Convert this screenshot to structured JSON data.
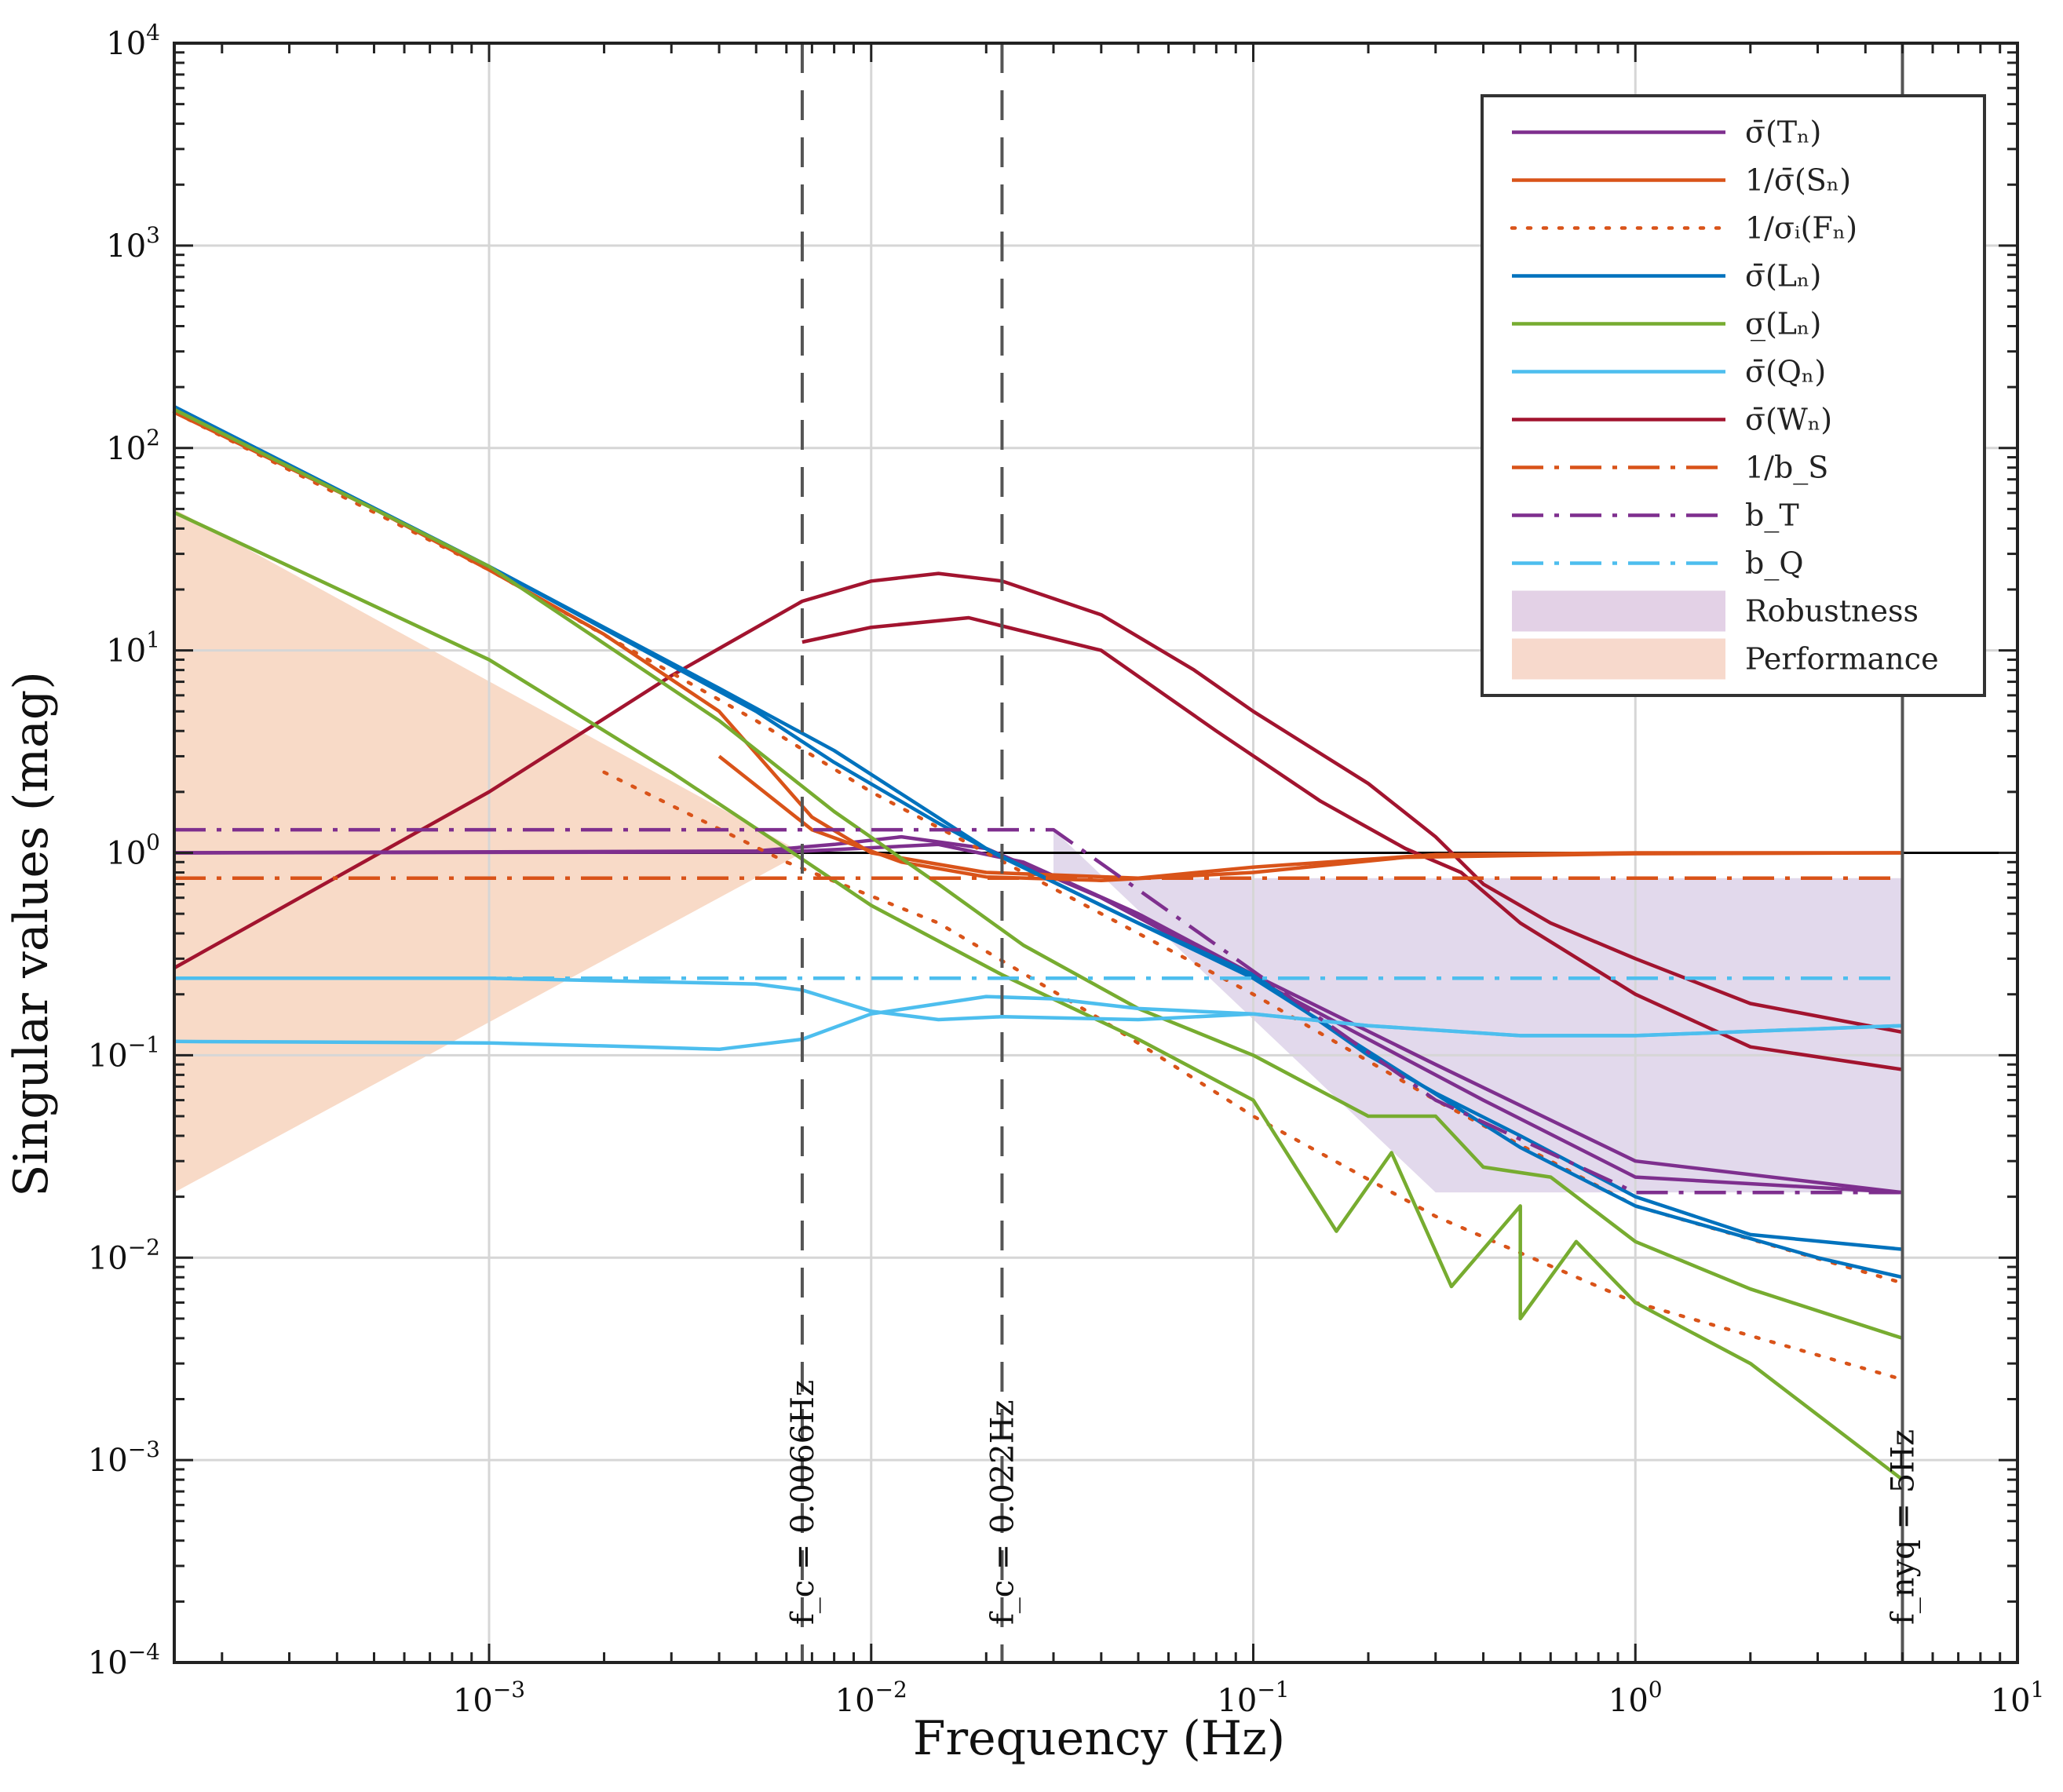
{
  "chart_data": {
    "type": "line",
    "title": "",
    "xlabel": "Frequency (Hz)",
    "ylabel": "Singular values (mag)",
    "xscale": "log",
    "yscale": "log",
    "xlim": [
      0.00015,
      10
    ],
    "ylim": [
      0.0001,
      10000
    ],
    "grid": true,
    "legend_position": "top-right",
    "x_tick_labels": [
      {
        "value": 0.001,
        "base": "10",
        "exp": "−3"
      },
      {
        "value": 0.01,
        "base": "10",
        "exp": "−2"
      },
      {
        "value": 0.1,
        "base": "10",
        "exp": "−1"
      },
      {
        "value": 1,
        "base": "10",
        "exp": "0"
      },
      {
        "value": 10,
        "base": "10",
        "exp": "1"
      }
    ],
    "y_tick_labels": [
      {
        "value": 0.0001,
        "base": "10",
        "exp": "−4"
      },
      {
        "value": 0.001,
        "base": "10",
        "exp": "−3"
      },
      {
        "value": 0.01,
        "base": "10",
        "exp": "−2"
      },
      {
        "value": 0.1,
        "base": "10",
        "exp": "−1"
      },
      {
        "value": 1,
        "base": "10",
        "exp": "0"
      },
      {
        "value": 10,
        "base": "10",
        "exp": "1"
      },
      {
        "value": 100,
        "base": "10",
        "exp": "2"
      },
      {
        "value": 1000,
        "base": "10",
        "exp": "3"
      },
      {
        "value": 10000,
        "base": "10",
        "exp": "4"
      }
    ],
    "vertical_lines": [
      {
        "x": 0.0066,
        "label": "f_c = 0.0066Hz",
        "style": "dashed",
        "color": "#555555"
      },
      {
        "x": 0.022,
        "label": "f_c = 0.022Hz",
        "style": "dashed",
        "color": "#555555"
      },
      {
        "x": 5,
        "label": "f_nyq = 5Hz",
        "style": "solid",
        "color": "#555555"
      }
    ],
    "reference_line": {
      "y": 1,
      "color": "#000000"
    },
    "legend": [
      {
        "label": "σ̄(Tₙ)",
        "color": "#7E2F8E",
        "style": "solid"
      },
      {
        "label": "1/σ̄(Sₙ)",
        "color": "#D95319",
        "style": "solid"
      },
      {
        "label": "1/σᵢ(Fₙ)",
        "color": "#D95319",
        "style": "dotted"
      },
      {
        "label": "σ̄(Lₙ)",
        "color": "#0072BD",
        "style": "solid"
      },
      {
        "label": "σ̲(Lₙ)",
        "color": "#77AC30",
        "style": "solid"
      },
      {
        "label": "σ̄(Qₙ)",
        "color": "#4DBEEE",
        "style": "solid"
      },
      {
        "label": "σ̄(Wₙ)",
        "color": "#A2142F",
        "style": "solid"
      },
      {
        "label": "1/b_S",
        "color": "#D95319",
        "style": "dashdot"
      },
      {
        "label": "b_T",
        "color": "#7E2F8E",
        "style": "dashdot"
      },
      {
        "label": "b_Q",
        "color": "#4DBEEE",
        "style": "dashdot"
      },
      {
        "label": "Robustness",
        "color": "#7E2F8E",
        "style": "patch"
      },
      {
        "label": "Performance",
        "color": "#D95319",
        "style": "patch"
      }
    ],
    "regions": [
      {
        "name": "Performance",
        "color": "#F5CDB4",
        "polygon": [
          [
            0.00015,
            50
          ],
          [
            0.0066,
            1
          ],
          [
            0.00015,
            0.021
          ]
        ]
      },
      {
        "name": "Robustness",
        "color": "#D8CCE6",
        "polygon": [
          [
            0.03,
            0.75
          ],
          [
            5,
            0.75
          ],
          [
            5,
            0.021
          ],
          [
            0.3,
            0.021
          ],
          [
            0.03,
            1.3
          ]
        ]
      }
    ],
    "series": [
      {
        "name": "Sigma_max(Wn) a",
        "color": "#A2142F",
        "style": "solid",
        "points": [
          [
            0.00015,
            0.27
          ],
          [
            0.001,
            2.0
          ],
          [
            0.003,
            7.5
          ],
          [
            0.0066,
            17.5
          ],
          [
            0.01,
            22
          ],
          [
            0.015,
            24
          ],
          [
            0.022,
            22
          ],
          [
            0.04,
            15
          ],
          [
            0.07,
            8
          ],
          [
            0.1,
            5
          ],
          [
            0.2,
            2.2
          ],
          [
            0.3,
            1.2
          ],
          [
            0.4,
            0.7
          ],
          [
            0.6,
            0.45
          ],
          [
            1,
            0.3
          ],
          [
            2,
            0.18
          ],
          [
            5,
            0.13
          ]
        ]
      },
      {
        "name": "Sigma_max(Wn) b",
        "color": "#A2142F",
        "style": "solid",
        "points": [
          [
            0.0066,
            11
          ],
          [
            0.01,
            13
          ],
          [
            0.018,
            14.5
          ],
          [
            0.04,
            10
          ],
          [
            0.08,
            4
          ],
          [
            0.15,
            1.8
          ],
          [
            0.25,
            1.05
          ],
          [
            0.35,
            0.8
          ],
          [
            0.5,
            0.45
          ],
          [
            1,
            0.2
          ],
          [
            2,
            0.11
          ],
          [
            5,
            0.085
          ]
        ]
      },
      {
        "name": "Sigma_max(Tn) a",
        "color": "#7E2F8E",
        "style": "solid",
        "points": [
          [
            0.00015,
            1
          ],
          [
            0.005,
            1.02
          ],
          [
            0.008,
            1.1
          ],
          [
            0.012,
            1.2
          ],
          [
            0.02,
            1.05
          ],
          [
            0.04,
            0.6
          ],
          [
            0.08,
            0.3
          ],
          [
            0.2,
            0.12
          ],
          [
            0.4,
            0.06
          ],
          [
            1,
            0.025
          ],
          [
            5,
            0.021
          ]
        ]
      },
      {
        "name": "Sigma_max(Tn) b",
        "color": "#7E2F8E",
        "style": "solid",
        "points": [
          [
            0.00015,
            1
          ],
          [
            0.006,
            1.01
          ],
          [
            0.015,
            1.1
          ],
          [
            0.025,
            0.9
          ],
          [
            0.05,
            0.5
          ],
          [
            0.1,
            0.25
          ],
          [
            0.3,
            0.09
          ],
          [
            1,
            0.03
          ],
          [
            5,
            0.021
          ]
        ]
      },
      {
        "name": "1/Sigma_max(Sn) a",
        "color": "#D95319",
        "style": "solid",
        "points": [
          [
            0.00015,
            150
          ],
          [
            0.0005,
            50
          ],
          [
            0.001,
            25
          ],
          [
            0.002,
            12
          ],
          [
            0.004,
            5
          ],
          [
            0.007,
            1.5
          ],
          [
            0.01,
            1.0
          ],
          [
            0.02,
            0.8
          ],
          [
            0.05,
            0.75
          ],
          [
            0.1,
            0.85
          ],
          [
            0.3,
            0.98
          ],
          [
            1,
            1
          ],
          [
            5,
            1
          ]
        ]
      },
      {
        "name": "1/Sigma_max(Sn) b",
        "color": "#D95319",
        "style": "solid",
        "points": [
          [
            0.004,
            3
          ],
          [
            0.007,
            1.3
          ],
          [
            0.012,
            0.9
          ],
          [
            0.02,
            0.76
          ],
          [
            0.04,
            0.73
          ],
          [
            0.1,
            0.8
          ],
          [
            0.25,
            0.95
          ],
          [
            1,
            0.99
          ],
          [
            5,
            1
          ]
        ]
      },
      {
        "name": "1/Sigma_i(Fn) a",
        "color": "#D95319",
        "style": "dotted",
        "points": [
          [
            0.00015,
            150
          ],
          [
            0.001,
            25
          ],
          [
            0.005,
            4.5
          ],
          [
            0.01,
            2
          ],
          [
            0.02,
            1
          ],
          [
            0.05,
            0.4
          ],
          [
            0.1,
            0.2
          ],
          [
            0.3,
            0.06
          ],
          [
            1,
            0.018
          ],
          [
            5,
            0.0075
          ]
        ]
      },
      {
        "name": "1/Sigma_i(Fn) b",
        "color": "#D95319",
        "style": "dotted",
        "points": [
          [
            0.002,
            2.5
          ],
          [
            0.006,
            0.9
          ],
          [
            0.015,
            0.45
          ],
          [
            0.04,
            0.15
          ],
          [
            0.1,
            0.05
          ],
          [
            0.3,
            0.016
          ],
          [
            1,
            0.006
          ],
          [
            5,
            0.0025
          ]
        ]
      },
      {
        "name": "Sigma_max(Ln) a",
        "color": "#0072BD",
        "style": "solid",
        "points": [
          [
            0.00015,
            160
          ],
          [
            0.001,
            26
          ],
          [
            0.005,
            5
          ],
          [
            0.008,
            2.8
          ],
          [
            0.015,
            1.4
          ],
          [
            0.022,
            0.95
          ],
          [
            0.05,
            0.45
          ],
          [
            0.1,
            0.25
          ],
          [
            0.2,
            0.1
          ],
          [
            0.3,
            0.065
          ],
          [
            0.5,
            0.04
          ],
          [
            1,
            0.02
          ],
          [
            2,
            0.013
          ],
          [
            5,
            0.011
          ]
        ]
      },
      {
        "name": "Sigma_max(Ln) b",
        "color": "#0072BD",
        "style": "solid",
        "points": [
          [
            0.00015,
            160
          ],
          [
            0.001,
            26
          ],
          [
            0.004,
            6.5
          ],
          [
            0.008,
            3.2
          ],
          [
            0.02,
            1.05
          ],
          [
            0.04,
            0.55
          ],
          [
            0.1,
            0.24
          ],
          [
            0.25,
            0.08
          ],
          [
            0.5,
            0.035
          ],
          [
            1,
            0.018
          ],
          [
            3,
            0.01
          ],
          [
            5,
            0.008
          ]
        ]
      },
      {
        "name": "Sigma_min(Ln) a",
        "color": "#77AC30",
        "style": "solid",
        "points": [
          [
            0.00015,
            155
          ],
          [
            0.001,
            26
          ],
          [
            0.004,
            4.5
          ],
          [
            0.008,
            1.6
          ],
          [
            0.015,
            0.7
          ],
          [
            0.025,
            0.35
          ],
          [
            0.05,
            0.17
          ],
          [
            0.1,
            0.1
          ],
          [
            0.2,
            0.05
          ],
          [
            0.3,
            0.05
          ],
          [
            0.4,
            0.028
          ],
          [
            0.6,
            0.025
          ],
          [
            1,
            0.012
          ],
          [
            2,
            0.007
          ],
          [
            5,
            0.004
          ]
        ]
      },
      {
        "name": "Sigma_min(Ln) b",
        "color": "#77AC30",
        "style": "solid",
        "points": [
          [
            0.00015,
            48
          ],
          [
            0.001,
            9
          ],
          [
            0.003,
            2.5
          ],
          [
            0.006,
            1.05
          ],
          [
            0.01,
            0.55
          ],
          [
            0.022,
            0.25
          ],
          [
            0.05,
            0.12
          ],
          [
            0.1,
            0.06
          ],
          [
            0.165,
            0.0135
          ],
          [
            0.23,
            0.033
          ],
          [
            0.33,
            0.0072
          ],
          [
            0.5,
            0.018
          ],
          [
            0.5,
            0.005
          ],
          [
            0.7,
            0.012
          ],
          [
            1,
            0.006
          ],
          [
            2,
            0.003
          ],
          [
            5,
            0.0008
          ]
        ]
      },
      {
        "name": "Sigma_max(Qn) a",
        "color": "#4DBEEE",
        "style": "solid",
        "points": [
          [
            0.00015,
            0.24
          ],
          [
            0.001,
            0.24
          ],
          [
            0.005,
            0.225
          ],
          [
            0.0066,
            0.21
          ],
          [
            0.01,
            0.165
          ],
          [
            0.015,
            0.15
          ],
          [
            0.022,
            0.155
          ],
          [
            0.05,
            0.15
          ],
          [
            0.1,
            0.16
          ],
          [
            0.2,
            0.14
          ],
          [
            0.5,
            0.125
          ],
          [
            1,
            0.125
          ],
          [
            5,
            0.14
          ]
        ]
      },
      {
        "name": "Sigma_max(Qn) b",
        "color": "#4DBEEE",
        "style": "solid",
        "points": [
          [
            0.00015,
            0.117
          ],
          [
            0.001,
            0.115
          ],
          [
            0.0025,
            0.11
          ],
          [
            0.004,
            0.107
          ],
          [
            0.0066,
            0.12
          ],
          [
            0.01,
            0.16
          ],
          [
            0.02,
            0.195
          ],
          [
            0.03,
            0.19
          ],
          [
            0.05,
            0.17
          ],
          [
            0.1,
            0.16
          ],
          [
            0.2,
            0.14
          ],
          [
            0.5,
            0.125
          ],
          [
            1,
            0.125
          ],
          [
            5,
            0.14
          ]
        ]
      },
      {
        "name": "1/b_S",
        "color": "#D95319",
        "style": "dashdot",
        "points": [
          [
            0.00015,
            0.75
          ],
          [
            5,
            0.75
          ]
        ]
      },
      {
        "name": "b_T",
        "color": "#7E2F8E",
        "style": "dashdot",
        "points": [
          [
            0.00015,
            1.3
          ],
          [
            0.03,
            1.3
          ],
          [
            0.03,
            1.3
          ],
          [
            0.3,
            0.06
          ],
          [
            1,
            0.021
          ],
          [
            5,
            0.021
          ]
        ]
      },
      {
        "name": "b_Q",
        "color": "#4DBEEE",
        "style": "dashdot",
        "points": [
          [
            0.00015,
            0.24
          ],
          [
            5,
            0.24
          ]
        ]
      }
    ]
  }
}
